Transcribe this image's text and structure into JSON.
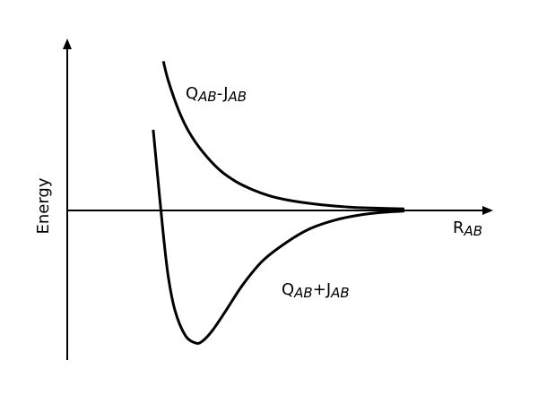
{
  "chart_data": {
    "type": "line",
    "title": "",
    "ylabel": "Energy",
    "xlabel": {
      "main": "R",
      "sub": "AB"
    },
    "grid": false,
    "legend": "none",
    "xlim": [
      0,
      10
    ],
    "ylim": [
      -5,
      5
    ],
    "series": [
      {
        "label_parts": [
          {
            "t": "Q",
            "sub": false
          },
          {
            "t": "AB",
            "sub": true
          },
          {
            "t": "-J",
            "sub": false
          },
          {
            "t": "AB",
            "sub": true
          }
        ],
        "x": [
          2.85,
          3.0,
          3.3,
          3.6,
          4.0,
          4.5,
          5.0,
          5.5,
          6.0,
          6.5,
          7.0,
          7.5,
          8.0,
          8.5,
          9.0,
          10.0
        ],
        "y": [
          4.9,
          4.25,
          3.3,
          2.6,
          1.95,
          1.35,
          0.95,
          0.68,
          0.48,
          0.35,
          0.26,
          0.19,
          0.14,
          0.1,
          0.08,
          0.05
        ]
      },
      {
        "label_parts": [
          {
            "t": "Q",
            "sub": false
          },
          {
            "t": "AB",
            "sub": true
          },
          {
            "t": "+J",
            "sub": false
          },
          {
            "t": "AB",
            "sub": true
          }
        ],
        "x": [
          2.55,
          2.7,
          2.85,
          3.0,
          3.2,
          3.5,
          3.8,
          4.0,
          4.3,
          4.7,
          5.2,
          5.8,
          6.5,
          7.2,
          8.0,
          8.8,
          9.5,
          10.0
        ],
        "y": [
          2.65,
          0.9,
          -0.8,
          -2.2,
          -3.3,
          -4.1,
          -4.35,
          -4.3,
          -3.95,
          -3.3,
          -2.45,
          -1.65,
          -1.05,
          -0.6,
          -0.3,
          -0.13,
          -0.05,
          -0.02
        ]
      }
    ]
  }
}
